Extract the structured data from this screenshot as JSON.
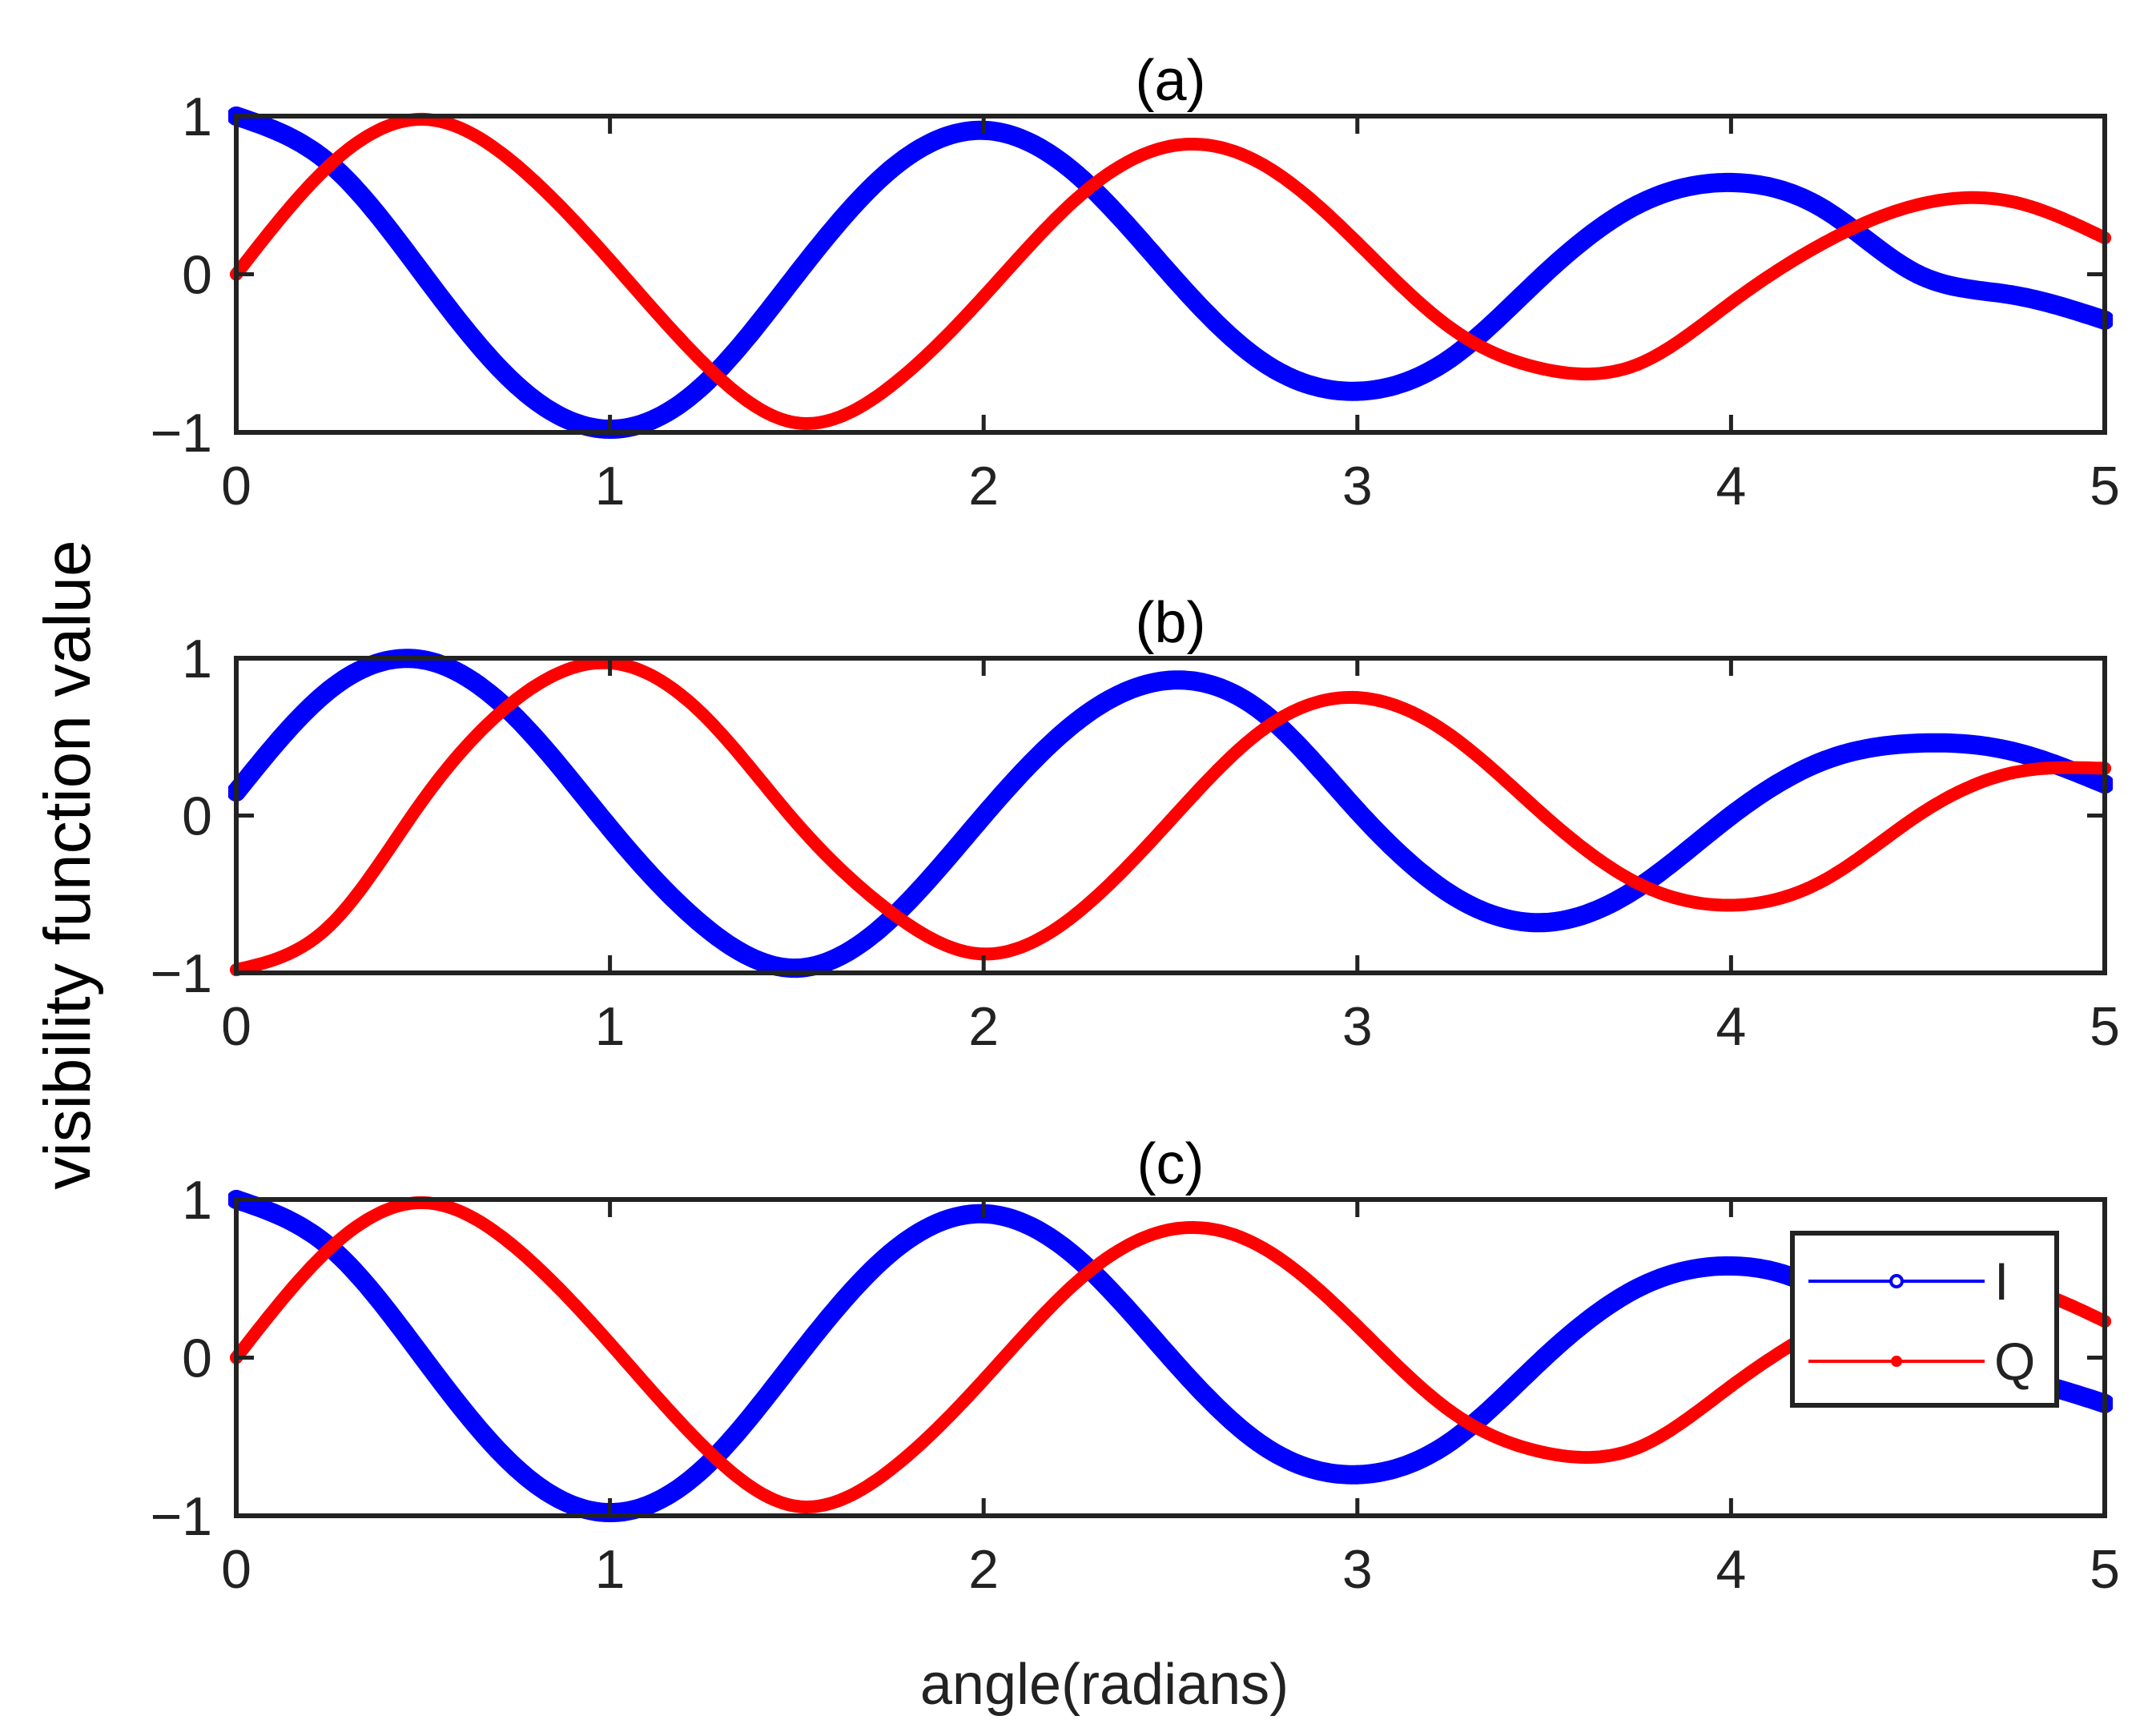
{
  "figure": {
    "ylabel": "visibility function value",
    "xlabel": "angle(radians)"
  },
  "legend": {
    "entries": [
      {
        "name": "I",
        "color": "#0000ff"
      },
      {
        "name": "Q",
        "color": "#ff0000"
      }
    ],
    "placement": "right (panel c)"
  },
  "chart_data": [
    {
      "type": "line",
      "title": "(a)",
      "xlim": [
        0,
        5
      ],
      "ylim": [
        -1,
        1
      ],
      "xticks": [
        "0",
        "1",
        "2",
        "3",
        "4",
        "5"
      ],
      "yticks": [
        "−1",
        "0",
        "1"
      ],
      "x": [
        0,
        0.25,
        0.5,
        0.75,
        1.0,
        1.25,
        1.5,
        1.75,
        2.0,
        2.25,
        2.5,
        2.75,
        3.0,
        3.25,
        3.5,
        3.75,
        4.0,
        4.25,
        4.5,
        4.75,
        5.0
      ],
      "series": [
        {
          "name": "I",
          "color": "#0000ff",
          "values": [
            1.0,
            0.7,
            0.0,
            -0.7,
            -0.98,
            -0.7,
            0.0,
            0.66,
            0.91,
            0.63,
            0.0,
            -0.56,
            -0.74,
            -0.53,
            0.0,
            0.44,
            0.58,
            0.41,
            0.0,
            -0.13,
            -0.29
          ]
        },
        {
          "name": "Q",
          "color": "#ff0000",
          "values": [
            0.0,
            0.69,
            0.98,
            0.69,
            0.09,
            -0.56,
            -0.94,
            -0.71,
            -0.14,
            0.48,
            0.81,
            0.69,
            0.2,
            -0.34,
            -0.6,
            -0.57,
            -0.18,
            0.2,
            0.44,
            0.46,
            0.23
          ]
        }
      ]
    },
    {
      "type": "line",
      "title": "(b)",
      "xlim": [
        0,
        5
      ],
      "ylim": [
        -1,
        1
      ],
      "xticks": [
        "0",
        "1",
        "2",
        "3",
        "4",
        "5"
      ],
      "yticks": [
        "−1",
        "0",
        "1"
      ],
      "x": [
        0,
        0.25,
        0.5,
        0.75,
        1.0,
        1.25,
        1.5,
        1.75,
        2.0,
        2.25,
        2.5,
        2.75,
        3.0,
        3.25,
        3.5,
        3.75,
        4.0,
        4.25,
        4.5,
        4.75,
        5.0
      ],
      "series": [
        {
          "name": "I",
          "color": "#0000ff",
          "values": [
            0.15,
            0.8,
            0.99,
            0.62,
            -0.08,
            -0.7,
            -0.97,
            -0.66,
            0.0,
            0.6,
            0.86,
            0.65,
            0.03,
            -0.5,
            -0.68,
            -0.46,
            0.0,
            0.35,
            0.46,
            0.41,
            0.2
          ]
        },
        {
          "name": "Q",
          "color": "#ff0000",
          "values": [
            -0.98,
            -0.7,
            0.1,
            0.74,
            0.97,
            0.64,
            -0.05,
            -0.61,
            -0.88,
            -0.62,
            -0.03,
            0.55,
            0.75,
            0.51,
            0.0,
            -0.43,
            -0.57,
            -0.41,
            0.0,
            0.27,
            0.3
          ]
        }
      ]
    },
    {
      "type": "line",
      "title": "(c)",
      "xlim": [
        0,
        5
      ],
      "ylim": [
        -1,
        1
      ],
      "xticks": [
        "0",
        "1",
        "2",
        "3",
        "4",
        "5"
      ],
      "yticks": [
        "−1",
        "0",
        "1"
      ],
      "x": [
        0,
        0.25,
        0.5,
        0.75,
        1.0,
        1.25,
        1.5,
        1.75,
        2.0,
        2.25,
        2.5,
        2.75,
        3.0,
        3.25,
        3.5,
        3.75,
        4.0,
        4.25,
        4.5,
        4.75,
        5.0
      ],
      "series": [
        {
          "name": "I",
          "color": "#0000ff",
          "values": [
            1.0,
            0.7,
            0.0,
            -0.7,
            -0.98,
            -0.7,
            0.0,
            0.66,
            0.91,
            0.63,
            0.0,
            -0.56,
            -0.74,
            -0.53,
            0.0,
            0.44,
            0.58,
            0.41,
            0.0,
            -0.13,
            -0.29
          ]
        },
        {
          "name": "Q",
          "color": "#ff0000",
          "values": [
            0.0,
            0.69,
            0.98,
            0.69,
            0.09,
            -0.56,
            -0.94,
            -0.71,
            -0.14,
            0.48,
            0.81,
            0.69,
            0.2,
            -0.34,
            -0.6,
            -0.57,
            -0.18,
            0.2,
            0.44,
            0.46,
            0.23
          ]
        }
      ]
    }
  ]
}
